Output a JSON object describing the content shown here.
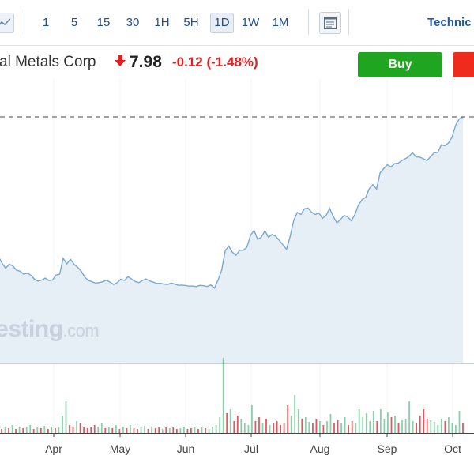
{
  "toolbar": {
    "intervals": [
      "1",
      "5",
      "15",
      "30",
      "1H",
      "5H",
      "1D",
      "1W",
      "1M"
    ],
    "active_interval": "1D",
    "technical_label": "Technic"
  },
  "quote": {
    "company_name": "al Metals Corp",
    "price": "7.98",
    "change": "-0.12",
    "change_percent": "(-1.48%)",
    "direction": "down",
    "buy_label": "Buy",
    "buy_color": "#1fa51f",
    "sell_color": "#ee2b1c",
    "down_color": "#e02020"
  },
  "watermark": {
    "text": "vesting",
    "suffix": ".com"
  },
  "chart_data": {
    "type": "area",
    "line_color": "#7aa8d4",
    "fill_color": "#e6eef6",
    "x_tick_labels": [
      "Apr",
      "May",
      "Jun",
      "Jul",
      "Aug",
      "Sep",
      "Oct"
    ],
    "last_value_line": "dashed",
    "price_series": [
      0.3,
      0.265,
      0.24,
      0.26,
      0.252,
      0.23,
      0.225,
      0.21,
      0.215,
      0.205,
      0.185,
      0.175,
      0.18,
      0.19,
      0.178,
      0.18,
      0.205,
      0.21,
      0.29,
      0.262,
      0.285,
      0.26,
      0.245,
      0.225,
      0.195,
      0.178,
      0.172,
      0.165,
      0.168,
      0.172,
      0.18,
      0.17,
      0.158,
      0.168,
      0.185,
      0.178,
      0.198,
      0.185,
      0.173,
      0.168,
      0.178,
      0.186,
      0.176,
      0.17,
      0.163,
      0.164,
      0.16,
      0.158,
      0.165,
      0.16,
      0.154,
      0.155,
      0.153,
      0.15,
      0.15,
      0.148,
      0.154,
      0.152,
      0.148,
      0.156,
      0.14,
      0.18,
      0.23,
      0.33,
      0.35,
      0.32,
      0.305,
      0.33,
      0.33,
      0.345,
      0.405,
      0.43,
      0.385,
      0.395,
      0.428,
      0.395,
      0.41,
      0.4,
      0.38,
      0.358,
      0.335,
      0.398,
      0.48,
      0.52,
      0.51,
      0.538,
      0.542,
      0.52,
      0.51,
      0.518,
      0.49,
      0.505,
      0.54,
      0.5,
      0.468,
      0.485,
      0.505,
      0.498,
      0.478,
      0.51,
      0.558,
      0.585,
      0.596,
      0.64,
      0.66,
      0.638,
      0.72,
      0.74,
      0.76,
      0.748,
      0.765,
      0.768,
      0.78,
      0.79,
      0.802,
      0.82,
      0.8,
      0.798,
      0.79,
      0.78,
      0.8,
      0.82,
      0.822,
      0.86,
      0.855,
      0.87,
      0.9,
      0.96,
      0.99,
      1.0
    ],
    "volume_series": [
      0.05,
      0.08,
      0.06,
      0.1,
      0.05,
      0.07,
      0.06,
      0.08,
      0.1,
      0.05,
      0.07,
      0.06,
      0.09,
      0.05,
      0.08,
      0.06,
      0.07,
      0.22,
      0.4,
      0.1,
      0.08,
      0.15,
      0.12,
      0.08,
      0.06,
      0.07,
      0.1,
      0.08,
      0.12,
      0.06,
      0.08,
      0.06,
      0.1,
      0.05,
      0.08,
      0.06,
      0.1,
      0.06,
      0.05,
      0.07,
      0.09,
      0.05,
      0.08,
      0.06,
      0.07,
      0.05,
      0.08,
      0.06,
      0.07,
      0.05,
      0.06,
      0.08,
      0.05,
      0.06,
      0.07,
      0.05,
      0.07,
      0.06,
      0.05,
      0.08,
      0.1,
      0.2,
      0.95,
      0.25,
      0.3,
      0.15,
      0.22,
      0.18,
      0.12,
      0.1,
      0.35,
      0.15,
      0.2,
      0.12,
      0.18,
      0.1,
      0.13,
      0.15,
      0.1,
      0.12,
      0.35,
      0.22,
      0.48,
      0.3,
      0.18,
      0.2,
      0.14,
      0.12,
      0.18,
      0.15,
      0.1,
      0.15,
      0.24,
      0.12,
      0.16,
      0.12,
      0.2,
      0.1,
      0.15,
      0.12,
      0.3,
      0.2,
      0.25,
      0.15,
      0.28,
      0.15,
      0.3,
      0.18,
      0.26,
      0.2,
      0.22,
      0.12,
      0.16,
      0.18,
      0.4,
      0.15,
      0.12,
      0.22,
      0.3,
      0.18,
      0.16,
      0.14,
      0.1,
      0.18,
      0.15,
      0.2,
      0.12,
      0.1,
      0.28,
      0.12
    ],
    "volume_colors": [
      "r",
      "g",
      "r",
      "g",
      "r",
      "g",
      "r",
      "g",
      "g",
      "r",
      "g",
      "r",
      "g",
      "r",
      "g",
      "r",
      "g",
      "g",
      "g",
      "r",
      "r",
      "g",
      "r",
      "r",
      "r",
      "r",
      "r",
      "g",
      "g",
      "r",
      "g",
      "r",
      "g",
      "r",
      "g",
      "r",
      "g",
      "r",
      "r",
      "g",
      "g",
      "r",
      "g",
      "r",
      "r",
      "g",
      "r",
      "g",
      "r",
      "r",
      "g",
      "g",
      "r",
      "r",
      "g",
      "r",
      "g",
      "r",
      "g",
      "g",
      "g",
      "g",
      "g",
      "r",
      "g",
      "r",
      "r",
      "g",
      "g",
      "g",
      "g",
      "r",
      "r",
      "g",
      "r",
      "g",
      "r",
      "r",
      "r",
      "r",
      "r",
      "g",
      "g",
      "g",
      "r",
      "g",
      "g",
      "r",
      "r",
      "g",
      "r",
      "g",
      "g",
      "r",
      "r",
      "g",
      "g",
      "r",
      "r",
      "g",
      "g",
      "g",
      "g",
      "g",
      "g",
      "r",
      "g",
      "g",
      "g",
      "r",
      "g",
      "r",
      "g",
      "g",
      "g",
      "g",
      "r",
      "r",
      "r",
      "r",
      "g",
      "g",
      "g",
      "g",
      "r",
      "g",
      "g",
      "g",
      "g",
      "r"
    ]
  }
}
